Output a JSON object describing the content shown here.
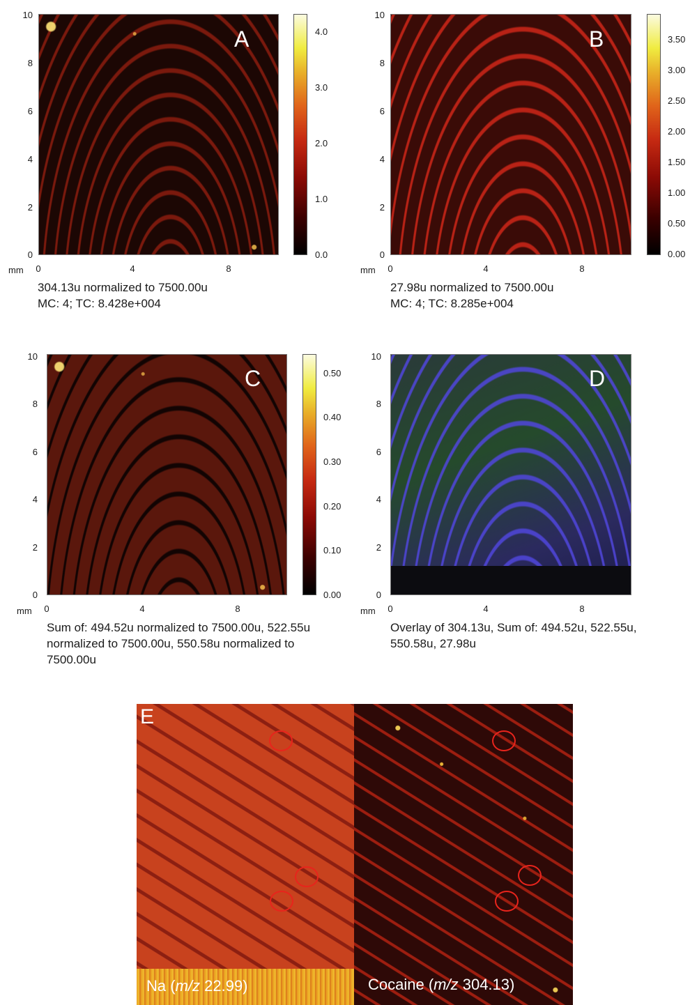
{
  "panels": [
    {
      "letter": "A",
      "y_ticks": [
        "10",
        "8",
        "6",
        "4",
        "2",
        "0"
      ],
      "x_ticks": [
        "0",
        "4",
        "8"
      ],
      "unit": "mm",
      "colorbar_ticks": [
        "4.0",
        "3.0",
        "2.0",
        "1.0",
        "0.0"
      ],
      "caption": "304.13u normalized to 7500.00u\nMC:     4; TC: 8.428e+004"
    },
    {
      "letter": "B",
      "y_ticks": [
        "10",
        "8",
        "6",
        "4",
        "2",
        "0"
      ],
      "x_ticks": [
        "0",
        "4",
        "8"
      ],
      "unit": "mm",
      "colorbar_ticks": [
        "3.50",
        "3.00",
        "2.50",
        "2.00",
        "1.50",
        "1.00",
        "0.50",
        "0.00"
      ],
      "caption": "27.98u normalized to 7500.00u\nMC:     4; TC: 8.285e+004"
    },
    {
      "letter": "C",
      "y_ticks": [
        "10",
        "8",
        "6",
        "4",
        "2",
        "0"
      ],
      "x_ticks": [
        "0",
        "4",
        "8"
      ],
      "unit": "mm",
      "colorbar_ticks": [
        "0.50",
        "0.40",
        "0.30",
        "0.20",
        "0.10",
        "0.00"
      ],
      "caption": "Sum of: 494.52u normalized to 7500.00u, 522.55u\nnormalized to 7500.00u, 550.58u normalized to\n7500.00u"
    },
    {
      "letter": "D",
      "y_ticks": [
        "10",
        "8",
        "6",
        "4",
        "2",
        "0"
      ],
      "x_ticks": [
        "0",
        "4",
        "8"
      ],
      "unit": "mm",
      "colorbar_ticks": [],
      "caption": "Overlay of 304.13u, Sum of: 494.52u, 522.55u,\n550.58u, 27.98u"
    }
  ],
  "panel_e": {
    "letter": "E",
    "left_label_prefix": "Na (",
    "left_label_mz": "m/z",
    "left_label_suffix": " 22.99)",
    "right_label_prefix": "Cocaine (",
    "right_label_mz": "m/z",
    "right_label_suffix": " 304.13)"
  },
  "colors": {
    "circle": "#e8241c",
    "label": "#ffffff"
  }
}
